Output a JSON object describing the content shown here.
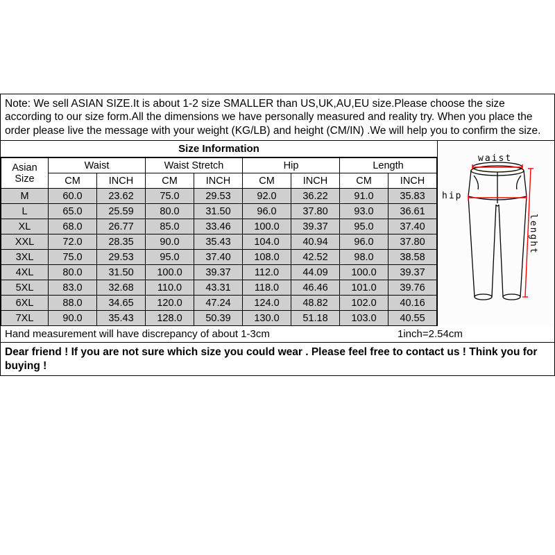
{
  "note": "Note: We sell ASIAN SIZE.It is about 1-2 size SMALLER than US,UK,AU,EU size.Please choose the size according to our size form.All the dimensions we have personally measured and reality try. When you place the order please live the message with your weight (KG/LB) and height (CM/IN) .We will help you to confirm the size.",
  "title": "Size Information",
  "cornerHeader": "Asian Size",
  "groupHeaders": [
    "Waist",
    "Waist Stretch",
    "Hip",
    "Length"
  ],
  "subHeaders": [
    "CM",
    "INCH"
  ],
  "rows": [
    {
      "size": "M",
      "vals": [
        "60.0",
        "23.62",
        "75.0",
        "29.53",
        "92.0",
        "36.22",
        "91.0",
        "35.83"
      ]
    },
    {
      "size": "L",
      "vals": [
        "65.0",
        "25.59",
        "80.0",
        "31.50",
        "96.0",
        "37.80",
        "93.0",
        "36.61"
      ]
    },
    {
      "size": "XL",
      "vals": [
        "68.0",
        "26.77",
        "85.0",
        "33.46",
        "100.0",
        "39.37",
        "95.0",
        "37.40"
      ]
    },
    {
      "size": "XXL",
      "vals": [
        "72.0",
        "28.35",
        "90.0",
        "35.43",
        "104.0",
        "40.94",
        "96.0",
        "37.80"
      ]
    },
    {
      "size": "3XL",
      "vals": [
        "75.0",
        "29.53",
        "95.0",
        "37.40",
        "108.0",
        "42.52",
        "98.0",
        "38.58"
      ]
    },
    {
      "size": "4XL",
      "vals": [
        "80.0",
        "31.50",
        "100.0",
        "39.37",
        "112.0",
        "44.09",
        "100.0",
        "39.37"
      ]
    },
    {
      "size": "5XL",
      "vals": [
        "83.0",
        "32.68",
        "110.0",
        "43.31",
        "118.0",
        "46.46",
        "101.0",
        "39.76"
      ]
    },
    {
      "size": "6XL",
      "vals": [
        "88.0",
        "34.65",
        "120.0",
        "47.24",
        "124.0",
        "48.82",
        "102.0",
        "40.16"
      ]
    },
    {
      "size": "7XL",
      "vals": [
        "90.0",
        "35.43",
        "128.0",
        "50.39",
        "130.0",
        "51.18",
        "103.0",
        "40.55"
      ]
    }
  ],
  "footLeft": "Hand measurement will have discrepancy of about 1-3cm",
  "footRight": "1inch=2.54cm",
  "closing": "Dear friend ! If you are not sure which size you could wear . Please feel free to contact us ! Think you for buying !",
  "diagram": {
    "labels": {
      "waist": "waist",
      "hip": "hip",
      "length": "lenght"
    },
    "colors": {
      "outline": "#000000",
      "measure": "#ff0000",
      "bg": "#ffffff"
    }
  },
  "style": {
    "headerBg": "#ffffff",
    "bodyBg": "#cfcfcf",
    "border": "#000000",
    "fontSizeCell": 14.5,
    "fontSizeNote": 15.5,
    "noteColor": "#000000"
  }
}
